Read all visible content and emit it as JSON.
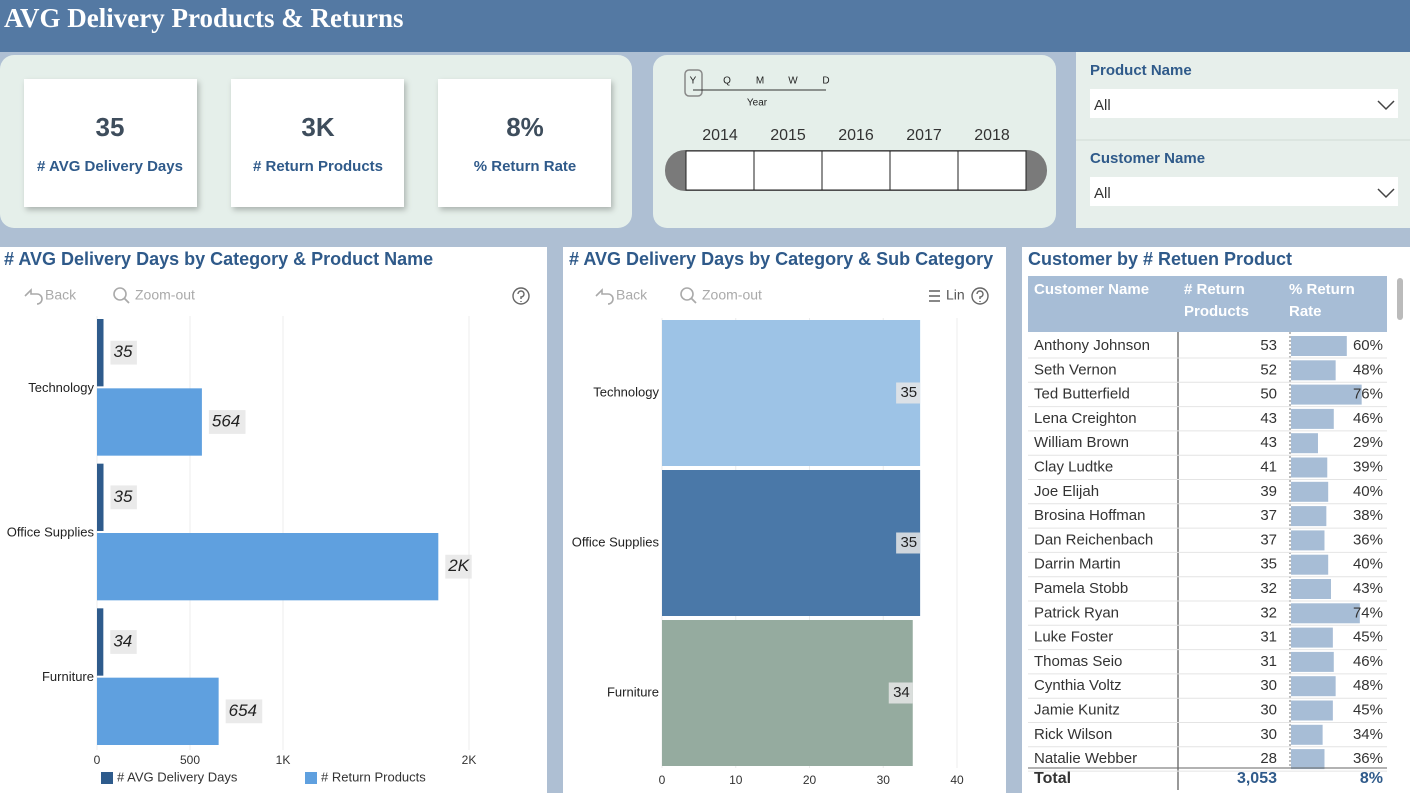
{
  "header": {
    "title": "AVG Delivery Products & Returns"
  },
  "kpis": [
    {
      "value": "35",
      "label": "# AVG Delivery Days"
    },
    {
      "value": "3K",
      "label": "# Return Products"
    },
    {
      "value": "8%",
      "label": "% Return Rate"
    }
  ],
  "date_slicer": {
    "levels": [
      "Y",
      "Q",
      "M",
      "W",
      "D"
    ],
    "level_label": "Year",
    "years": [
      "2014",
      "2015",
      "2016",
      "2017",
      "2018"
    ]
  },
  "filters": [
    {
      "label": "Product Name",
      "value": "All"
    },
    {
      "label": "Customer Name",
      "value": "All"
    }
  ],
  "chart_data": [
    {
      "type": "bar",
      "orientation": "horizontal",
      "title": "# AVG Delivery Days by Category & Product Name",
      "toolbar": [
        "Back",
        "Zoom-out"
      ],
      "categories": [
        "Technology",
        "Office Supplies",
        "Furniture"
      ],
      "series": [
        {
          "name": "# AVG Delivery Days",
          "color": "#2e5b8c",
          "values": [
            35,
            35,
            34
          ]
        },
        {
          "name": "# Return Products",
          "color": "#5fa0df",
          "values": [
            564,
            1835,
            654
          ],
          "value_labels": [
            "564",
            "2K",
            "654"
          ]
        }
      ],
      "xlim": [
        0,
        2000
      ],
      "xticks": [
        0,
        500,
        {
          "value": 1000,
          "label": "1K"
        },
        {
          "value": 2000,
          "label": "2K"
        }
      ],
      "grid": true,
      "legend": "bottom"
    },
    {
      "type": "bar",
      "orientation": "horizontal",
      "title": "# AVG Delivery Days by Category & Sub Category",
      "toolbar": [
        "Back",
        "Zoom-out",
        "Lin"
      ],
      "categories": [
        "Technology",
        "Office Supplies",
        "Furniture"
      ],
      "values": [
        35,
        35,
        34
      ],
      "colors": [
        "#9dc3e6",
        "#4a78a8",
        "#95ab9f"
      ],
      "xlim": [
        0,
        40
      ],
      "xticks": [
        0,
        10,
        20,
        30,
        40
      ],
      "grid": true
    }
  ],
  "table": {
    "title": "Customer by # Retuen Product",
    "columns": [
      "Customer Name",
      "# Return Products",
      "% Return Rate"
    ],
    "rows": [
      {
        "name": "Anthony Johnson",
        "returns": 53,
        "rate": 60,
        "rate_label": "60%"
      },
      {
        "name": "Seth Vernon",
        "returns": 52,
        "rate": 48,
        "rate_label": "48%"
      },
      {
        "name": "Ted Butterfield",
        "returns": 50,
        "rate": 76,
        "rate_label": "76%"
      },
      {
        "name": "Lena Creighton",
        "returns": 43,
        "rate": 46,
        "rate_label": "46%"
      },
      {
        "name": "William Brown",
        "returns": 43,
        "rate": 29,
        "rate_label": "29%"
      },
      {
        "name": "Clay Ludtke",
        "returns": 41,
        "rate": 39,
        "rate_label": "39%"
      },
      {
        "name": "Joe Elijah",
        "returns": 39,
        "rate": 40,
        "rate_label": "40%"
      },
      {
        "name": "Brosina Hoffman",
        "returns": 37,
        "rate": 38,
        "rate_label": "38%"
      },
      {
        "name": "Dan Reichenbach",
        "returns": 37,
        "rate": 36,
        "rate_label": "36%"
      },
      {
        "name": "Darrin Martin",
        "returns": 35,
        "rate": 40,
        "rate_label": "40%"
      },
      {
        "name": "Pamela Stobb",
        "returns": 32,
        "rate": 43,
        "rate_label": "43%"
      },
      {
        "name": "Patrick Ryan",
        "returns": 32,
        "rate": 74,
        "rate_label": "74%"
      },
      {
        "name": "Luke Foster",
        "returns": 31,
        "rate": 45,
        "rate_label": "45%"
      },
      {
        "name": "Thomas Seio",
        "returns": 31,
        "rate": 46,
        "rate_label": "46%"
      },
      {
        "name": "Cynthia Voltz",
        "returns": 30,
        "rate": 48,
        "rate_label": "48%"
      },
      {
        "name": "Jamie Kunitz",
        "returns": 30,
        "rate": 45,
        "rate_label": "45%"
      },
      {
        "name": "Rick Wilson",
        "returns": 30,
        "rate": 34,
        "rate_label": "34%"
      },
      {
        "name": "Natalie Webber",
        "returns": 28,
        "rate": 36,
        "rate_label": "36%"
      }
    ],
    "total": {
      "label": "Total",
      "returns": "3,053",
      "rate": "8%"
    }
  }
}
